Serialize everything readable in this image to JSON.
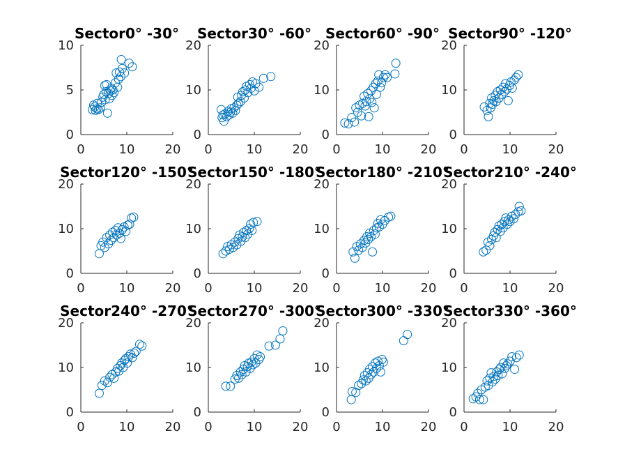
{
  "figure": {
    "background": "#ffffff",
    "marker_color": "#0072BD",
    "axis_color": "#262626"
  },
  "chart_data": [
    {
      "type": "scatter",
      "title": "Sector0° -30°",
      "xlim": [
        0,
        20
      ],
      "ylim": [
        0,
        10
      ],
      "xticks": [
        0,
        10,
        20
      ],
      "yticks": [
        0,
        5,
        10
      ],
      "points": [
        [
          2.5,
          2.8
        ],
        [
          2.8,
          3.3
        ],
        [
          3.0,
          3.1
        ],
        [
          3.2,
          2.7
        ],
        [
          3.5,
          2.9
        ],
        [
          3.6,
          3.5
        ],
        [
          3.8,
          2.8
        ],
        [
          4.2,
          3.0
        ],
        [
          4.5,
          3.6
        ],
        [
          4.8,
          4.2
        ],
        [
          5.0,
          4.5
        ],
        [
          5.2,
          5.5
        ],
        [
          5.3,
          3.9
        ],
        [
          5.5,
          4.8
        ],
        [
          5.6,
          5.6
        ],
        [
          5.8,
          2.4
        ],
        [
          6.0,
          4.6
        ],
        [
          6.2,
          4.0
        ],
        [
          6.4,
          4.9
        ],
        [
          6.6,
          5.2
        ],
        [
          6.8,
          4.4
        ],
        [
          7.0,
          5.0
        ],
        [
          7.2,
          4.7
        ],
        [
          7.5,
          5.8
        ],
        [
          7.7,
          6.9
        ],
        [
          8.0,
          5.3
        ],
        [
          8.2,
          6.2
        ],
        [
          8.4,
          7.0
        ],
        [
          8.7,
          6.5
        ],
        [
          9.0,
          7.4
        ],
        [
          8.8,
          8.4
        ],
        [
          9.5,
          6.9
        ],
        [
          10.5,
          8.0
        ],
        [
          11.2,
          7.6
        ]
      ]
    },
    {
      "type": "scatter",
      "title": "Sector30° -60°",
      "xlim": [
        0,
        20
      ],
      "ylim": [
        0,
        20
      ],
      "xticks": [
        0,
        10,
        20
      ],
      "yticks": [
        0,
        10,
        20
      ],
      "points": [
        [
          2.8,
          5.6
        ],
        [
          3.0,
          3.8
        ],
        [
          3.2,
          4.4
        ],
        [
          3.4,
          3.0
        ],
        [
          3.6,
          4.6
        ],
        [
          4.0,
          4.0
        ],
        [
          4.3,
          5.2
        ],
        [
          4.5,
          4.4
        ],
        [
          4.8,
          5.0
        ],
        [
          5.0,
          5.8
        ],
        [
          5.3,
          4.8
        ],
        [
          5.6,
          6.0
        ],
        [
          5.9,
          5.4
        ],
        [
          6.2,
          6.6
        ],
        [
          6.4,
          8.4
        ],
        [
          6.6,
          7.0
        ],
        [
          7.0,
          7.4
        ],
        [
          7.2,
          8.8
        ],
        [
          7.5,
          9.6
        ],
        [
          7.8,
          8.2
        ],
        [
          8.0,
          10.0
        ],
        [
          8.3,
          10.8
        ],
        [
          8.6,
          9.4
        ],
        [
          9.0,
          11.2
        ],
        [
          9.3,
          10.4
        ],
        [
          9.6,
          11.8
        ],
        [
          10.0,
          9.8
        ],
        [
          10.3,
          11.4
        ],
        [
          11.0,
          10.6
        ],
        [
          12.0,
          12.6
        ],
        [
          13.6,
          13.0
        ]
      ]
    },
    {
      "type": "scatter",
      "title": "Sector60° -90°",
      "xlim": [
        0,
        20
      ],
      "ylim": [
        0,
        20
      ],
      "xticks": [
        0,
        10,
        20
      ],
      "yticks": [
        0,
        10,
        20
      ],
      "points": [
        [
          1.8,
          2.6
        ],
        [
          2.6,
          2.4
        ],
        [
          3.3,
          3.8
        ],
        [
          3.9,
          2.8
        ],
        [
          4.2,
          6.0
        ],
        [
          4.6,
          5.0
        ],
        [
          5.0,
          6.6
        ],
        [
          5.4,
          4.2
        ],
        [
          5.7,
          7.0
        ],
        [
          6.0,
          8.6
        ],
        [
          6.2,
          6.4
        ],
        [
          6.5,
          7.4
        ],
        [
          6.8,
          9.2
        ],
        [
          7.0,
          4.0
        ],
        [
          7.2,
          8.0
        ],
        [
          7.5,
          9.8
        ],
        [
          7.7,
          7.2
        ],
        [
          8.0,
          10.6
        ],
        [
          8.2,
          6.0
        ],
        [
          8.5,
          11.4
        ],
        [
          8.7,
          9.0
        ],
        [
          9.0,
          12.0
        ],
        [
          9.2,
          13.4
        ],
        [
          9.5,
          10.6
        ],
        [
          9.8,
          11.6
        ],
        [
          10.2,
          12.8
        ],
        [
          10.6,
          13.4
        ],
        [
          11.0,
          12.8
        ],
        [
          12.7,
          13.6
        ],
        [
          12.9,
          16.0
        ]
      ]
    },
    {
      "type": "scatter",
      "title": "Sector90° -120°",
      "xlim": [
        0,
        20
      ],
      "ylim": [
        0,
        20
      ],
      "xticks": [
        0,
        10,
        20
      ],
      "yticks": [
        0,
        10,
        20
      ],
      "points": [
        [
          4.4,
          6.2
        ],
        [
          5.0,
          5.4
        ],
        [
          5.3,
          4.0
        ],
        [
          5.6,
          7.0
        ],
        [
          5.8,
          6.0
        ],
        [
          6.0,
          8.2
        ],
        [
          6.2,
          6.8
        ],
        [
          6.5,
          7.6
        ],
        [
          6.8,
          8.8
        ],
        [
          7.0,
          7.4
        ],
        [
          7.3,
          9.6
        ],
        [
          7.6,
          8.2
        ],
        [
          7.9,
          10.0
        ],
        [
          8.2,
          9.0
        ],
        [
          8.5,
          10.6
        ],
        [
          8.8,
          9.6
        ],
        [
          9.0,
          11.4
        ],
        [
          9.3,
          10.2
        ],
        [
          9.6,
          7.6
        ],
        [
          9.9,
          11.0
        ],
        [
          10.2,
          11.8
        ],
        [
          10.5,
          10.4
        ],
        [
          10.9,
          12.2
        ],
        [
          11.3,
          12.8
        ],
        [
          11.8,
          13.4
        ]
      ]
    },
    {
      "type": "scatter",
      "title": "Sector120° -150°",
      "xlim": [
        0,
        20
      ],
      "ylim": [
        0,
        20
      ],
      "xticks": [
        0,
        10,
        20
      ],
      "yticks": [
        0,
        10,
        20
      ],
      "points": [
        [
          4.0,
          4.4
        ],
        [
          4.4,
          6.2
        ],
        [
          4.8,
          7.0
        ],
        [
          5.2,
          5.8
        ],
        [
          5.6,
          8.0
        ],
        [
          6.0,
          6.6
        ],
        [
          6.3,
          8.6
        ],
        [
          6.6,
          7.4
        ],
        [
          6.9,
          9.2
        ],
        [
          7.2,
          8.0
        ],
        [
          7.5,
          9.6
        ],
        [
          7.8,
          8.6
        ],
        [
          8.1,
          10.2
        ],
        [
          8.4,
          9.0
        ],
        [
          8.7,
          7.8
        ],
        [
          9.0,
          9.8
        ],
        [
          9.4,
          10.4
        ],
        [
          9.8,
          9.4
        ],
        [
          10.2,
          10.8
        ],
        [
          10.6,
          11.0
        ],
        [
          11.0,
          12.4
        ],
        [
          11.5,
          12.6
        ]
      ]
    },
    {
      "type": "scatter",
      "title": "Sector150° -180°",
      "xlim": [
        0,
        20
      ],
      "ylim": [
        0,
        20
      ],
      "xticks": [
        0,
        10,
        20
      ],
      "yticks": [
        0,
        10,
        20
      ],
      "points": [
        [
          3.2,
          4.4
        ],
        [
          3.8,
          5.0
        ],
        [
          4.2,
          6.0
        ],
        [
          4.6,
          5.4
        ],
        [
          5.0,
          6.4
        ],
        [
          5.4,
          5.8
        ],
        [
          5.8,
          7.0
        ],
        [
          6.2,
          6.4
        ],
        [
          6.5,
          7.8
        ],
        [
          6.8,
          8.6
        ],
        [
          7.1,
          7.2
        ],
        [
          7.4,
          8.2
        ],
        [
          7.7,
          9.2
        ],
        [
          8.0,
          8.0
        ],
        [
          8.3,
          9.6
        ],
        [
          8.6,
          8.8
        ],
        [
          8.9,
          10.0
        ],
        [
          9.2,
          11.0
        ],
        [
          9.5,
          9.6
        ],
        [
          9.8,
          11.4
        ],
        [
          10.6,
          11.6
        ]
      ]
    },
    {
      "type": "scatter",
      "title": "Sector180° -210°",
      "xlim": [
        0,
        20
      ],
      "ylim": [
        0,
        20
      ],
      "xticks": [
        0,
        10,
        20
      ],
      "yticks": [
        0,
        10,
        20
      ],
      "points": [
        [
          3.6,
          4.8
        ],
        [
          4.0,
          3.4
        ],
        [
          4.4,
          6.0
        ],
        [
          4.8,
          5.2
        ],
        [
          5.2,
          6.6
        ],
        [
          5.6,
          5.8
        ],
        [
          6.0,
          7.4
        ],
        [
          6.3,
          6.8
        ],
        [
          6.6,
          8.2
        ],
        [
          6.9,
          7.6
        ],
        [
          7.2,
          9.0
        ],
        [
          7.5,
          8.2
        ],
        [
          7.8,
          4.8
        ],
        [
          8.1,
          9.6
        ],
        [
          8.4,
          8.8
        ],
        [
          8.7,
          10.2
        ],
        [
          9.0,
          11.2
        ],
        [
          9.3,
          10.4
        ],
        [
          9.6,
          12.0
        ],
        [
          10.0,
          11.0
        ],
        [
          10.5,
          11.8
        ],
        [
          11.3,
          12.6
        ],
        [
          11.8,
          12.8
        ]
      ]
    },
    {
      "type": "scatter",
      "title": "Sector210° -240°",
      "xlim": [
        0,
        20
      ],
      "ylim": [
        0,
        20
      ],
      "xticks": [
        0,
        10,
        20
      ],
      "yticks": [
        0,
        10,
        20
      ],
      "points": [
        [
          4.2,
          4.8
        ],
        [
          4.8,
          5.2
        ],
        [
          5.2,
          7.0
        ],
        [
          5.6,
          6.2
        ],
        [
          6.0,
          7.6
        ],
        [
          6.4,
          8.4
        ],
        [
          6.7,
          9.2
        ],
        [
          7.0,
          8.0
        ],
        [
          7.3,
          9.8
        ],
        [
          7.6,
          10.6
        ],
        [
          7.9,
          9.4
        ],
        [
          8.2,
          11.0
        ],
        [
          8.5,
          10.2
        ],
        [
          8.8,
          11.6
        ],
        [
          9.1,
          12.4
        ],
        [
          9.4,
          11.0
        ],
        [
          9.7,
          12.0
        ],
        [
          10.0,
          11.6
        ],
        [
          10.4,
          12.8
        ],
        [
          10.8,
          12.2
        ],
        [
          11.2,
          13.2
        ],
        [
          11.8,
          13.8
        ],
        [
          12.4,
          14.0
        ],
        [
          12.0,
          15.0
        ]
      ]
    },
    {
      "type": "scatter",
      "title": "Sector240° -270°",
      "xlim": [
        0,
        20
      ],
      "ylim": [
        0,
        20
      ],
      "xticks": [
        0,
        10,
        20
      ],
      "yticks": [
        0,
        10,
        20
      ],
      "points": [
        [
          4.0,
          4.2
        ],
        [
          4.6,
          6.0
        ],
        [
          5.2,
          7.0
        ],
        [
          5.8,
          6.6
        ],
        [
          6.3,
          7.8
        ],
        [
          6.8,
          8.4
        ],
        [
          7.2,
          7.6
        ],
        [
          7.6,
          9.0
        ],
        [
          8.0,
          9.8
        ],
        [
          8.3,
          9.2
        ],
        [
          8.6,
          10.4
        ],
        [
          8.9,
          11.0
        ],
        [
          9.2,
          10.0
        ],
        [
          9.5,
          11.6
        ],
        [
          9.8,
          12.0
        ],
        [
          10.1,
          11.0
        ],
        [
          10.4,
          12.4
        ],
        [
          10.8,
          13.0
        ],
        [
          11.2,
          12.2
        ],
        [
          11.6,
          13.2
        ],
        [
          12.0,
          13.6
        ],
        [
          12.8,
          15.2
        ],
        [
          13.3,
          14.8
        ]
      ]
    },
    {
      "type": "scatter",
      "title": "Sector270° -300°",
      "xlim": [
        0,
        20
      ],
      "ylim": [
        0,
        20
      ],
      "xticks": [
        0,
        10,
        20
      ],
      "yticks": [
        0,
        10,
        20
      ],
      "points": [
        [
          3.8,
          5.8
        ],
        [
          4.8,
          5.8
        ],
        [
          5.8,
          7.4
        ],
        [
          6.2,
          8.2
        ],
        [
          6.6,
          7.6
        ],
        [
          7.0,
          9.0
        ],
        [
          7.3,
          8.4
        ],
        [
          7.6,
          9.6
        ],
        [
          7.9,
          10.4
        ],
        [
          8.2,
          9.0
        ],
        [
          8.5,
          10.2
        ],
        [
          8.8,
          11.0
        ],
        [
          9.1,
          9.8
        ],
        [
          9.4,
          11.2
        ],
        [
          9.7,
          10.6
        ],
        [
          10.0,
          12.0
        ],
        [
          10.3,
          11.0
        ],
        [
          10.6,
          12.8
        ],
        [
          11.0,
          11.8
        ],
        [
          11.3,
          12.4
        ],
        [
          13.2,
          14.8
        ],
        [
          14.6,
          15.0
        ],
        [
          15.6,
          16.4
        ],
        [
          16.2,
          18.2
        ]
      ]
    },
    {
      "type": "scatter",
      "title": "Sector300° -330°",
      "xlim": [
        0,
        20
      ],
      "ylim": [
        0,
        20
      ],
      "xticks": [
        0,
        10,
        20
      ],
      "yticks": [
        0,
        10,
        20
      ],
      "points": [
        [
          3.2,
          2.8
        ],
        [
          3.4,
          4.6
        ],
        [
          4.2,
          4.4
        ],
        [
          4.8,
          6.0
        ],
        [
          5.4,
          6.4
        ],
        [
          5.8,
          7.2
        ],
        [
          6.1,
          8.2
        ],
        [
          6.4,
          7.0
        ],
        [
          6.7,
          8.8
        ],
        [
          7.0,
          7.6
        ],
        [
          7.2,
          9.6
        ],
        [
          7.5,
          8.4
        ],
        [
          7.8,
          10.2
        ],
        [
          8.1,
          9.0
        ],
        [
          8.4,
          11.0
        ],
        [
          8.7,
          9.8
        ],
        [
          9.0,
          11.4
        ],
        [
          9.3,
          10.4
        ],
        [
          9.6,
          9.0
        ],
        [
          9.9,
          11.8
        ],
        [
          10.2,
          11.2
        ],
        [
          14.6,
          16.0
        ],
        [
          15.4,
          17.4
        ]
      ]
    },
    {
      "type": "scatter",
      "title": "Sector330° -360°",
      "xlim": [
        0,
        20
      ],
      "ylim": [
        0,
        20
      ],
      "xticks": [
        0,
        10,
        20
      ],
      "yticks": [
        0,
        10,
        20
      ],
      "points": [
        [
          2.0,
          3.0
        ],
        [
          2.6,
          3.4
        ],
        [
          3.0,
          4.2
        ],
        [
          3.4,
          2.8
        ],
        [
          3.8,
          5.0
        ],
        [
          4.2,
          2.8
        ],
        [
          4.6,
          5.6
        ],
        [
          5.0,
          7.0
        ],
        [
          5.3,
          6.0
        ],
        [
          5.6,
          7.6
        ],
        [
          5.9,
          8.8
        ],
        [
          6.2,
          6.8
        ],
        [
          6.5,
          8.0
        ],
        [
          6.8,
          7.4
        ],
        [
          7.1,
          9.0
        ],
        [
          7.4,
          8.2
        ],
        [
          7.7,
          9.6
        ],
        [
          8.0,
          10.0
        ],
        [
          8.3,
          8.6
        ],
        [
          8.6,
          11.0
        ],
        [
          8.9,
          9.8
        ],
        [
          9.2,
          10.4
        ],
        [
          9.5,
          10.8
        ],
        [
          10.0,
          11.4
        ],
        [
          10.4,
          12.4
        ],
        [
          11.0,
          9.6
        ],
        [
          11.4,
          12.2
        ],
        [
          12.0,
          12.8
        ]
      ]
    }
  ]
}
